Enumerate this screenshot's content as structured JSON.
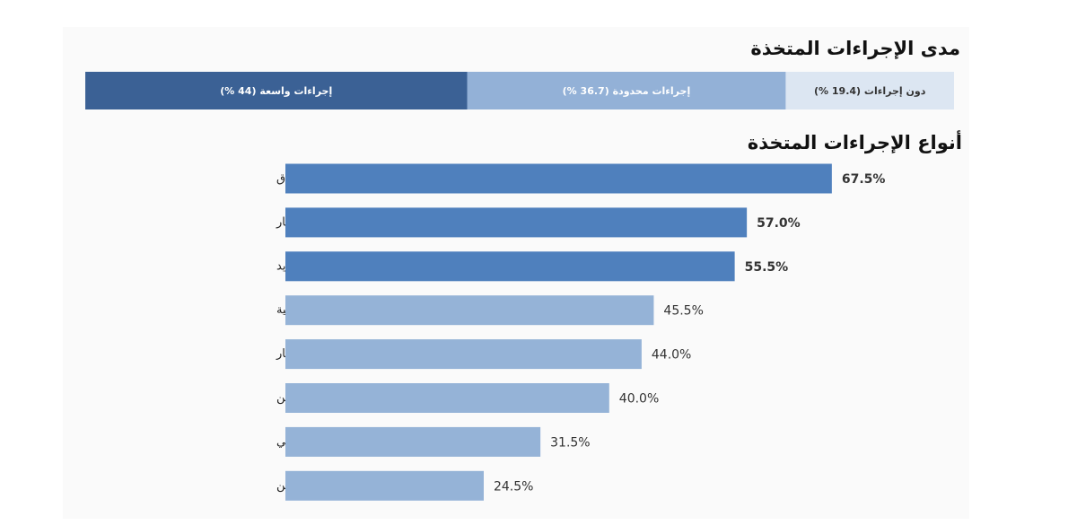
{
  "chart_data": [
    {
      "type": "stacked_bar",
      "title": "مدى الإجراءات المتخذة",
      "series": [
        {
          "name": "دون إجراءات",
          "color": "#dce6f2",
          "values": [
            19.4
          ],
          "value_labels": [
            "(19.4 %)"
          ]
        },
        {
          "name": "إجراءات محدودة",
          "color": "#93b1d7",
          "values": [
            36.7
          ],
          "value_labels": [
            "(36.7 %)"
          ]
        },
        {
          "name": "إجراءات واسعة",
          "color": "#3b6195",
          "values": [
            44
          ],
          "value_labels": [
            "(44 %)"
          ]
        }
      ]
    },
    {
      "type": "hbar",
      "title": "أنواع الإجراءات المتخذة",
      "categories": [
        "إعادة ترتيب أولويات الإنفاق",
        "تأجيل التوسع أو الاستثمار",
        "تعديل خطط الشحن أو التوريد",
        "خفض التكاليف التشغيلية",
        "مراجعة الأسعار",
        "تنويع الموردين",
        "زيادة المخزون الاحتياطي",
        "التوسع نحو أسواق أو موردين بديلين"
      ],
      "values": [
        67.5,
        57.0,
        55.5,
        45.5,
        44.0,
        40.0,
        31.5,
        24.5
      ],
      "value_labels": [
        "67.5%",
        "57.0%",
        "55.5%",
        "45.5%",
        "44.0%",
        "40.0%",
        "31.5%",
        "24.5%"
      ],
      "colors": [
        "#4f80bd",
        "#4f80bd",
        "#4f80bd",
        "#95b3d7",
        "#95b3d7",
        "#95b3d7",
        "#95b3d7",
        "#95b3d7"
      ]
    }
  ]
}
